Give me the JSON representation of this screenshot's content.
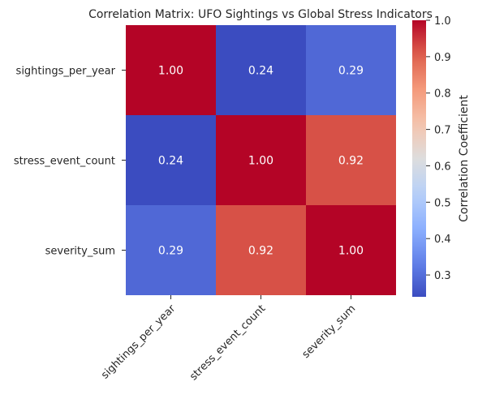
{
  "chart_data": {
    "type": "heatmap",
    "title": "Correlation Matrix: UFO Sightings vs Global Stress Indicators",
    "rows": [
      "sightings_per_year",
      "stress_event_count",
      "severity_sum"
    ],
    "columns": [
      "sightings_per_year",
      "stress_event_count",
      "severity_sum"
    ],
    "values": [
      [
        1.0,
        0.24,
        0.29
      ],
      [
        0.24,
        1.0,
        0.92
      ],
      [
        0.29,
        0.92,
        1.0
      ]
    ],
    "cell_labels": [
      [
        "1.00",
        "0.24",
        "0.29"
      ],
      [
        "0.24",
        "1.00",
        "0.92"
      ],
      [
        "0.29",
        "0.92",
        "1.00"
      ]
    ],
    "colormap": "coolwarm",
    "colorbar": {
      "label": "Correlation Coefficient",
      "range": [
        0.24,
        1.0
      ],
      "ticks": [
        0.3,
        0.4,
        0.5,
        0.6,
        0.7,
        0.8,
        0.9,
        1.0
      ],
      "tick_labels": [
        "0.3",
        "0.4",
        "0.5",
        "0.6",
        "0.7",
        "0.8",
        "0.9",
        "1.0"
      ]
    },
    "x_tick_rotation": 45
  }
}
